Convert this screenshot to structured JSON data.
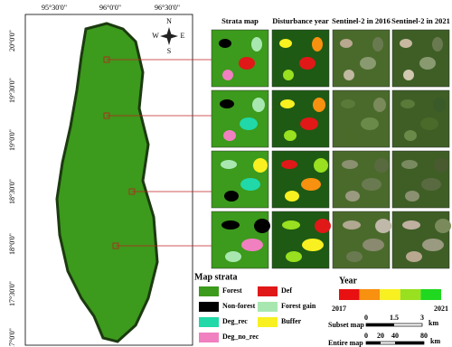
{
  "map": {
    "longitude_labels": [
      "95°30'0\"",
      "96°0'0\"",
      "96°30'0\""
    ],
    "latitude_labels": [
      "20°0'0\"",
      "19°30'0\"",
      "19°0'0\"",
      "18°30'0\"",
      "18°0'0\"",
      "17°30'0\"",
      "17°0'0\""
    ],
    "compass": {
      "n": "N",
      "s": "S",
      "e": "E",
      "w": "W"
    }
  },
  "panels": {
    "column_headers": [
      "Strata map",
      "Disturbance year",
      "Sentinel-2 in 2016",
      "Sentinel-2 in 2021"
    ]
  },
  "legend": {
    "title": "Map strata",
    "items": [
      {
        "label": "Forest",
        "color": "#3c9a1c"
      },
      {
        "label": "Def",
        "color": "#e01818"
      },
      {
        "label": "Non-forest",
        "color": "#000000"
      },
      {
        "label": "Forest gain",
        "color": "#a8e8b0"
      },
      {
        "label": "Deg_rec",
        "color": "#20d8a8"
      },
      {
        "label": "Buffer",
        "color": "#f8f020"
      },
      {
        "label": "Deg_no_rec",
        "color": "#f080c0"
      }
    ]
  },
  "year_bar": {
    "title": "Year",
    "start": "2017",
    "end": "2021",
    "colors": [
      "#e81010",
      "#f89010",
      "#f8f020",
      "#98e020",
      "#20d820"
    ]
  },
  "scale_bars": [
    {
      "label": "Subset map",
      "ticks": [
        "0",
        "1.5",
        "3"
      ],
      "unit": "km"
    },
    {
      "label": "Entire map",
      "ticks": [
        "0",
        "20",
        "40",
        "80"
      ],
      "unit": "km"
    }
  ]
}
